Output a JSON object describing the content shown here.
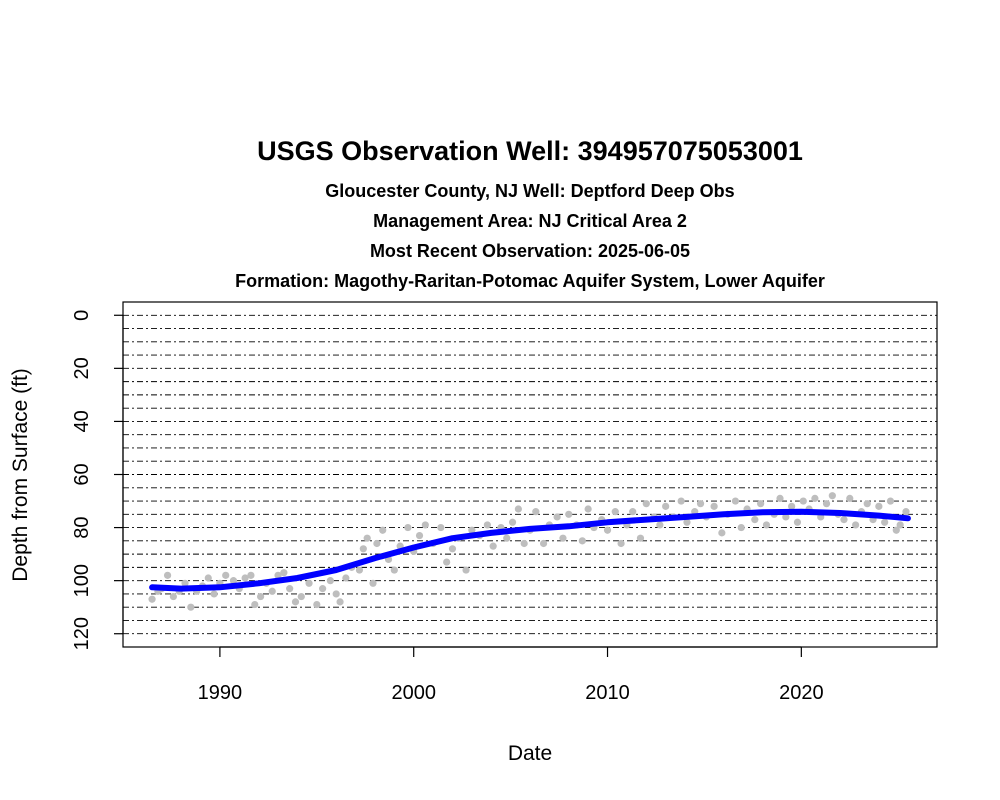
{
  "chart_data": {
    "type": "scatter",
    "title": "USGS Observation Well:  394957075053001",
    "subtitles": [
      "Gloucester County, NJ   Well: Deptford Deep Obs",
      "Management Area: NJ Critical Area 2",
      "Most Recent Observation: 2025-06-05",
      "Formation: Magothy-Raritan-Potomac Aquifer System, Lower Aquifer"
    ],
    "xlabel": "Date",
    "ylabel": "Depth from Surface (ft)",
    "xlim": [
      1985.0,
      2027.0
    ],
    "ylim": [
      125,
      -5
    ],
    "y_reversed": true,
    "x_ticks": [
      1990,
      2000,
      2010,
      2020
    ],
    "y_ticks": [
      0,
      20,
      40,
      60,
      80,
      100,
      120
    ],
    "grid": {
      "type": "horizontal-dashed",
      "interval_ft": 5
    },
    "colors": {
      "points": "#bebebe",
      "trend": "#0000ff"
    },
    "series": [
      {
        "kind": "points",
        "values": [
          [
            1986.5,
            107
          ],
          [
            1986.8,
            104
          ],
          [
            1987.0,
            103
          ],
          [
            1987.3,
            98
          ],
          [
            1987.6,
            106
          ],
          [
            1987.9,
            104
          ],
          [
            1988.2,
            101
          ],
          [
            1988.5,
            110
          ],
          [
            1988.8,
            104
          ],
          [
            1989.1,
            102
          ],
          [
            1989.4,
            99
          ],
          [
            1989.7,
            105
          ],
          [
            1990.0,
            101
          ],
          [
            1990.3,
            98
          ],
          [
            1990.7,
            100
          ],
          [
            1991.0,
            103
          ],
          [
            1991.3,
            99
          ],
          [
            1991.6,
            98
          ],
          [
            1991.8,
            109
          ],
          [
            1992.1,
            106
          ],
          [
            1992.4,
            101
          ],
          [
            1992.7,
            104
          ],
          [
            1993.0,
            98
          ],
          [
            1993.3,
            97
          ],
          [
            1993.6,
            103
          ],
          [
            1993.9,
            108
          ],
          [
            1994.2,
            106
          ],
          [
            1994.6,
            101
          ],
          [
            1995.0,
            109
          ],
          [
            1995.3,
            103
          ],
          [
            1995.7,
            100
          ],
          [
            1996.0,
            105
          ],
          [
            1996.2,
            108
          ],
          [
            1996.5,
            99
          ],
          [
            1996.8,
            95
          ],
          [
            1997.2,
            96
          ],
          [
            1997.4,
            88
          ],
          [
            1997.6,
            84
          ],
          [
            1997.9,
            101
          ],
          [
            1998.1,
            86
          ],
          [
            1998.4,
            81
          ],
          [
            1998.7,
            92
          ],
          [
            1999.0,
            96
          ],
          [
            1999.3,
            87
          ],
          [
            1999.7,
            80
          ],
          [
            2000.0,
            89
          ],
          [
            2000.3,
            83
          ],
          [
            2000.6,
            79
          ],
          [
            2001.0,
            86
          ],
          [
            2001.4,
            80
          ],
          [
            2001.7,
            93
          ],
          [
            2002.0,
            88
          ],
          [
            2002.3,
            84
          ],
          [
            2002.7,
            96
          ],
          [
            2003.0,
            81
          ],
          [
            2003.4,
            83
          ],
          [
            2003.8,
            79
          ],
          [
            2004.1,
            87
          ],
          [
            2004.5,
            80
          ],
          [
            2004.8,
            84
          ],
          [
            2005.1,
            78
          ],
          [
            2005.4,
            73
          ],
          [
            2005.7,
            86
          ],
          [
            2006.0,
            81
          ],
          [
            2006.3,
            74
          ],
          [
            2006.7,
            86
          ],
          [
            2007.0,
            79
          ],
          [
            2007.4,
            76
          ],
          [
            2007.7,
            84
          ],
          [
            2008.0,
            75
          ],
          [
            2008.4,
            79
          ],
          [
            2008.7,
            85
          ],
          [
            2009.0,
            73
          ],
          [
            2009.3,
            80
          ],
          [
            2009.7,
            77
          ],
          [
            2010.0,
            81
          ],
          [
            2010.4,
            74
          ],
          [
            2010.7,
            86
          ],
          [
            2011.0,
            79
          ],
          [
            2011.3,
            74
          ],
          [
            2011.7,
            84
          ],
          [
            2012.0,
            71
          ],
          [
            2012.4,
            76
          ],
          [
            2012.7,
            79
          ],
          [
            2013.0,
            72
          ],
          [
            2013.4,
            76
          ],
          [
            2013.8,
            70
          ],
          [
            2014.1,
            78
          ],
          [
            2014.5,
            74
          ],
          [
            2014.8,
            71
          ],
          [
            2015.1,
            76
          ],
          [
            2015.5,
            72
          ],
          [
            2015.9,
            82
          ],
          [
            2016.2,
            75
          ],
          [
            2016.6,
            70
          ],
          [
            2016.9,
            80
          ],
          [
            2017.2,
            73
          ],
          [
            2017.6,
            77
          ],
          [
            2017.9,
            71
          ],
          [
            2018.2,
            79
          ],
          [
            2018.6,
            75
          ],
          [
            2018.9,
            69
          ],
          [
            2019.2,
            76
          ],
          [
            2019.5,
            72
          ],
          [
            2019.8,
            78
          ],
          [
            2020.1,
            70
          ],
          [
            2020.4,
            73
          ],
          [
            2020.7,
            69
          ],
          [
            2021.0,
            76
          ],
          [
            2021.3,
            71
          ],
          [
            2021.6,
            68
          ],
          [
            2021.9,
            75
          ],
          [
            2022.2,
            77
          ],
          [
            2022.5,
            69
          ],
          [
            2022.8,
            79
          ],
          [
            2023.1,
            74
          ],
          [
            2023.4,
            71
          ],
          [
            2023.7,
            77
          ],
          [
            2024.0,
            72
          ],
          [
            2024.3,
            78
          ],
          [
            2024.6,
            70
          ],
          [
            2024.9,
            81
          ],
          [
            2025.1,
            79
          ],
          [
            2025.4,
            74
          ]
        ]
      },
      {
        "kind": "trend",
        "values": [
          [
            1986.5,
            102.5
          ],
          [
            1988.0,
            103
          ],
          [
            1990.0,
            102.5
          ],
          [
            1992.0,
            101
          ],
          [
            1994.0,
            99
          ],
          [
            1996.0,
            96
          ],
          [
            1998.0,
            91.5
          ],
          [
            2000.0,
            87.5
          ],
          [
            2002.0,
            84
          ],
          [
            2004.0,
            82
          ],
          [
            2006.0,
            80.5
          ],
          [
            2008.0,
            79.5
          ],
          [
            2010.0,
            78
          ],
          [
            2012.0,
            77
          ],
          [
            2014.0,
            76
          ],
          [
            2016.0,
            75
          ],
          [
            2018.0,
            74.2
          ],
          [
            2020.0,
            74
          ],
          [
            2022.0,
            74.5
          ],
          [
            2024.0,
            75.5
          ],
          [
            2025.5,
            76.5
          ]
        ]
      }
    ]
  }
}
